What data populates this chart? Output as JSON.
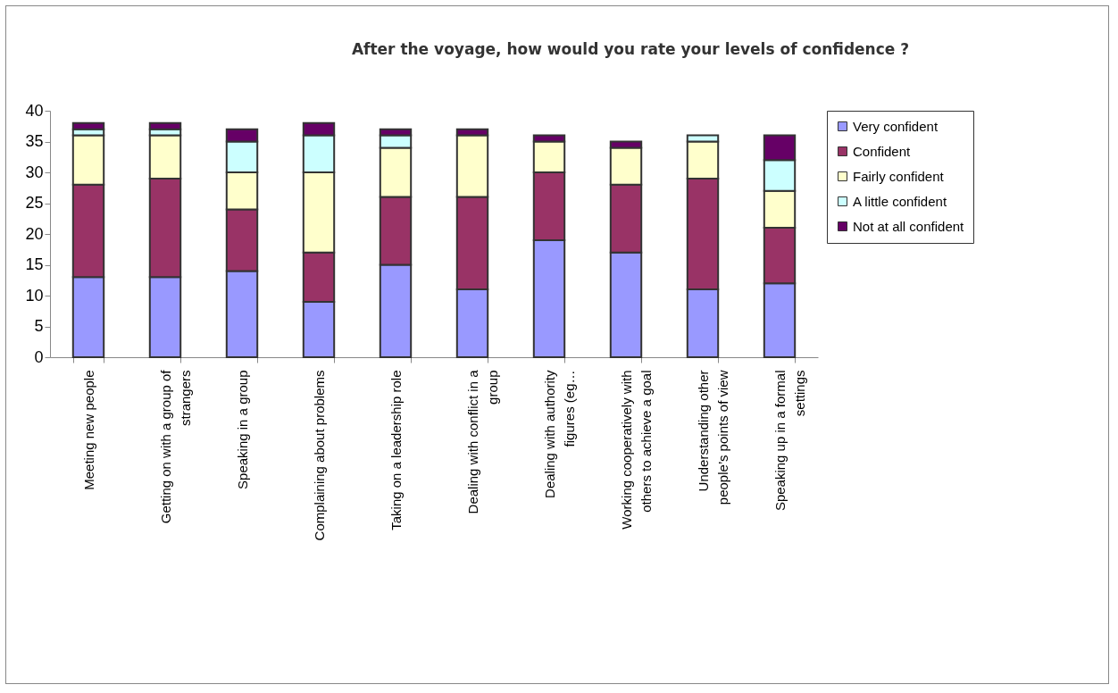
{
  "chart_data": {
    "type": "bar",
    "title": "After the voyage, how would you rate your levels of confidence ?",
    "stacked": true,
    "categories": [
      "Meeting new people",
      "Getting on with a group of strangers",
      "Speaking in a group",
      "Complaining about problems",
      "Taking on a leadership role",
      "Dealing with conflict in a group",
      "Dealing with authority figures (eg…",
      "Working cooperatively with others to achieve a goal",
      "Understanding other people’s points of view",
      "Speaking up in a formal settings"
    ],
    "series": [
      {
        "name": "Very confident",
        "color": "#9999ff",
        "values": [
          13,
          13,
          14,
          9,
          15,
          11,
          19,
          17,
          11,
          12
        ]
      },
      {
        "name": "Confident",
        "color": "#993366",
        "values": [
          15,
          16,
          10,
          8,
          11,
          15,
          11,
          11,
          18,
          9
        ]
      },
      {
        "name": "Fairly confident",
        "color": "#ffffcc",
        "values": [
          8,
          7,
          6,
          13,
          8,
          10,
          5,
          6,
          6,
          6
        ]
      },
      {
        "name": "A little confident",
        "color": "#ccffff",
        "values": [
          1,
          1,
          5,
          6,
          2,
          0,
          0,
          0,
          1,
          5
        ]
      },
      {
        "name": "Not at all confident",
        "color": "#660066",
        "values": [
          1,
          1,
          2,
          2,
          1,
          1,
          1,
          1,
          0,
          4
        ]
      }
    ],
    "ylim": [
      0,
      40
    ],
    "yticks": [
      0,
      5,
      10,
      15,
      20,
      25,
      30,
      35,
      40
    ],
    "grid": false,
    "legend": "right"
  }
}
